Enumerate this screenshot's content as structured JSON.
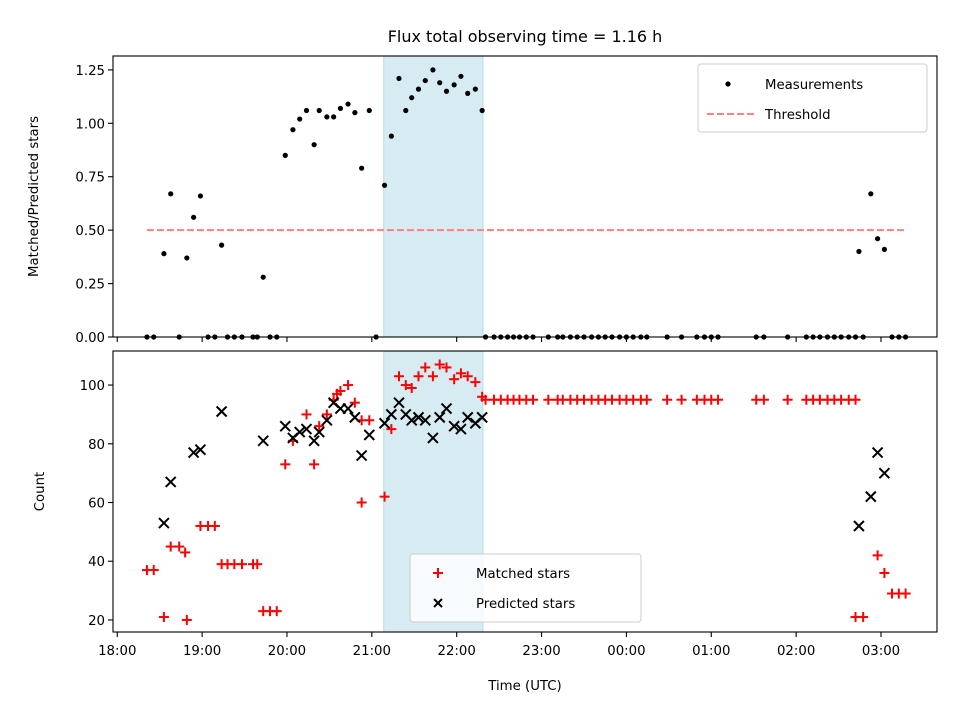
{
  "chart_data": [
    {
      "type": "scatter",
      "panel": "top",
      "title": "Flux total observing time = 1.16 h",
      "xlabel": "",
      "ylabel": "Matched/Predicted stars",
      "xlim": [
        17.95,
        27.66
      ],
      "ylim": [
        0,
        1.315
      ],
      "yticks": [
        0.0,
        0.25,
        0.5,
        0.75,
        1.0,
        1.25
      ],
      "ytick_labels": [
        "0.00",
        "0.25",
        "0.50",
        "0.75",
        "1.00",
        "1.25"
      ],
      "shaded_region": {
        "x_start": 21.14,
        "x_end": 22.31,
        "color": "#add8e6",
        "opacity": 0.5
      },
      "legend": {
        "placement": "upper right",
        "entries": [
          {
            "label": "Measurements",
            "marker": "dot",
            "color": "#000000"
          },
          {
            "label": "Threshold",
            "marker": "dashed-line",
            "color": "#ff8080"
          }
        ]
      },
      "series": [
        {
          "name": "Measurements",
          "color": "#000000",
          "marker": "dot",
          "x": [
            18.35,
            18.43,
            18.55,
            18.63,
            18.73,
            18.82,
            18.9,
            18.98,
            19.07,
            19.15,
            19.23,
            19.3,
            19.38,
            19.47,
            19.6,
            19.65,
            19.72,
            19.8,
            19.88,
            19.98,
            20.07,
            20.15,
            20.23,
            20.32,
            20.38,
            20.47,
            20.55,
            20.63,
            20.72,
            20.8,
            20.88,
            20.97,
            21.05,
            21.15,
            21.23,
            21.32,
            21.4,
            21.47,
            21.55,
            21.63,
            21.72,
            21.8,
            21.88,
            21.97,
            22.05,
            22.13,
            22.22,
            22.3,
            22.34,
            22.44,
            22.52,
            22.6,
            22.67,
            22.74,
            22.82,
            22.9,
            23.08,
            23.19,
            23.25,
            23.34,
            23.42,
            23.5,
            23.59,
            23.67,
            23.75,
            23.83,
            23.92,
            24.0,
            24.08,
            24.17,
            24.24,
            24.48,
            24.65,
            24.83,
            24.92,
            25.0,
            25.08,
            25.53,
            25.62,
            25.9,
            26.12,
            26.2,
            26.28,
            26.37,
            26.45,
            26.53,
            26.62,
            26.7,
            26.74,
            26.79,
            26.88,
            26.96,
            27.04,
            27.13,
            27.21,
            27.29
          ],
          "y": [
            0,
            0,
            0.39,
            0.67,
            0,
            0.37,
            0.56,
            0.66,
            0,
            0,
            0.43,
            0,
            0,
            0,
            0,
            0,
            0.28,
            0,
            0,
            0.85,
            0.97,
            1.02,
            1.06,
            0.9,
            1.06,
            1.03,
            1.03,
            1.07,
            1.09,
            1.05,
            0.79,
            1.06,
            0,
            0.71,
            0.94,
            1.21,
            1.06,
            1.12,
            1.16,
            1.2,
            1.25,
            1.19,
            1.15,
            1.18,
            1.22,
            1.14,
            1.16,
            1.06,
            0,
            0,
            0,
            0,
            0,
            0,
            0,
            0,
            0,
            0,
            0,
            0,
            0,
            0,
            0,
            0,
            0,
            0,
            0,
            0,
            0,
            0,
            0,
            0,
            0,
            0,
            0,
            0,
            0,
            0,
            0,
            0,
            0,
            0,
            0,
            0,
            0,
            0,
            0,
            0,
            0.4,
            0,
            0.67,
            0.46,
            0.41,
            0,
            0,
            0
          ]
        },
        {
          "name": "Threshold",
          "color": "#ff8080",
          "style": "dashed",
          "x": [
            18.35,
            27.29
          ],
          "y": [
            0.5,
            0.5
          ]
        }
      ]
    },
    {
      "type": "scatter",
      "panel": "bottom",
      "title": "",
      "xlabel": "Time (UTC)",
      "ylabel": "Count",
      "xlim": [
        17.95,
        27.66
      ],
      "ylim": [
        15.9,
        111.6
      ],
      "yticks": [
        20,
        40,
        60,
        80,
        100
      ],
      "ytick_labels": [
        "20",
        "40",
        "60",
        "80",
        "100"
      ],
      "xticks": [
        18,
        19,
        20,
        21,
        22,
        23,
        24,
        25,
        26,
        27
      ],
      "xtick_labels": [
        "18:00",
        "19:00",
        "20:00",
        "21:00",
        "22:00",
        "23:00",
        "00:00",
        "01:00",
        "02:00",
        "03:00"
      ],
      "shaded_region": {
        "x_start": 21.14,
        "x_end": 22.31,
        "color": "#add8e6",
        "opacity": 0.5
      },
      "legend": {
        "placement": "lower center",
        "entries": [
          {
            "label": "Matched stars",
            "marker": "plus",
            "color": "#ff0000"
          },
          {
            "label": "Predicted stars",
            "marker": "x",
            "color": "#000000"
          }
        ]
      },
      "series": [
        {
          "name": "Matched stars",
          "color": "#ff0000",
          "marker": "plus",
          "x": [
            18.35,
            18.43,
            18.55,
            18.63,
            18.73,
            18.8,
            18.82,
            18.98,
            19.07,
            19.15,
            19.23,
            19.3,
            19.38,
            19.47,
            19.6,
            19.65,
            19.72,
            19.8,
            19.88,
            19.98,
            20.07,
            20.23,
            20.32,
            20.38,
            20.47,
            20.55,
            20.59,
            20.63,
            20.72,
            20.8,
            20.88,
            20.88,
            20.97,
            21.15,
            21.23,
            21.32,
            21.4,
            21.47,
            21.55,
            21.63,
            21.72,
            21.8,
            21.88,
            21.97,
            22.05,
            22.13,
            22.22,
            22.3,
            22.34,
            22.44,
            22.52,
            22.6,
            22.67,
            22.74,
            22.82,
            22.9,
            23.08,
            23.19,
            23.25,
            23.34,
            23.42,
            23.5,
            23.59,
            23.67,
            23.75,
            23.83,
            23.92,
            24.0,
            24.08,
            24.17,
            24.24,
            24.48,
            24.65,
            24.83,
            24.92,
            25.0,
            25.08,
            25.53,
            25.62,
            25.9,
            26.12,
            26.2,
            26.28,
            26.37,
            26.45,
            26.53,
            26.62,
            26.7,
            26.7,
            26.79,
            26.96,
            27.04,
            27.13,
            27.21,
            27.29
          ],
          "y": [
            37,
            37,
            21,
            45,
            45,
            43,
            20,
            52,
            52,
            52,
            39,
            39,
            39,
            39,
            39,
            39,
            23,
            23,
            23,
            73,
            81,
            90,
            73,
            86,
            90,
            95,
            97,
            98,
            100,
            94,
            60,
            88,
            88,
            62,
            85,
            103,
            100,
            99,
            103,
            106,
            103,
            107,
            106,
            102,
            104,
            103,
            101,
            96,
            95,
            95,
            95,
            95,
            95,
            95,
            95,
            95,
            95,
            95,
            95,
            95,
            95,
            95,
            95,
            95,
            95,
            95,
            95,
            95,
            95,
            95,
            95,
            95,
            95,
            95,
            95,
            95,
            95,
            95,
            95,
            95,
            95,
            95,
            95,
            95,
            95,
            95,
            95,
            95,
            21,
            21,
            42,
            36,
            29,
            29,
            29
          ]
        },
        {
          "name": "Predicted stars",
          "color": "#000000",
          "marker": "x",
          "x": [
            18.55,
            18.63,
            18.9,
            18.98,
            19.23,
            19.72,
            19.98,
            20.07,
            20.15,
            20.23,
            20.32,
            20.38,
            20.47,
            20.55,
            20.63,
            20.72,
            20.8,
            20.88,
            20.97,
            21.15,
            21.23,
            21.32,
            21.4,
            21.47,
            21.55,
            21.63,
            21.72,
            21.8,
            21.88,
            21.97,
            22.05,
            22.13,
            22.22,
            22.3,
            26.74,
            26.88,
            26.96,
            27.04
          ],
          "y": [
            53,
            67,
            77,
            78,
            91,
            81,
            86,
            82,
            84,
            85,
            81,
            84,
            88,
            94,
            92,
            92,
            89,
            76,
            83,
            87,
            90,
            94,
            90,
            88,
            89,
            88,
            82,
            89,
            92,
            86,
            85,
            89,
            87,
            89,
            52,
            62,
            77,
            70
          ]
        }
      ]
    }
  ]
}
